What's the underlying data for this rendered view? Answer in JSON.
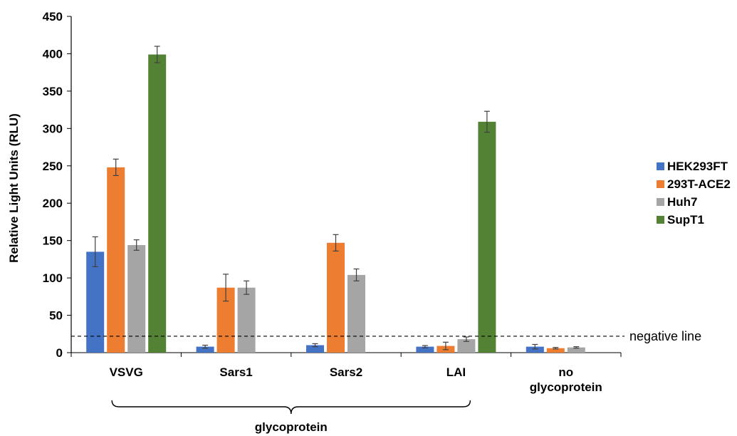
{
  "chart_data": {
    "type": "bar",
    "ylabel": "Relative Light Units (RLU)",
    "ylim": [
      0,
      450
    ],
    "yticks": [
      0,
      50,
      100,
      150,
      200,
      250,
      300,
      350,
      400,
      450
    ],
    "categories": [
      {
        "lines": [
          "VSVG"
        ]
      },
      {
        "lines": [
          "Sars1"
        ]
      },
      {
        "lines": [
          "Sars2"
        ]
      },
      {
        "lines": [
          "LAI"
        ]
      },
      {
        "lines": [
          "no",
          "glycoprotein"
        ]
      }
    ],
    "series": [
      {
        "name": "HEK293FT",
        "color": "#4472C4",
        "values": [
          135,
          8,
          10,
          8,
          8
        ],
        "errors": [
          20,
          2,
          2,
          1.5,
          3
        ]
      },
      {
        "name": "293T-ACE2",
        "color": "#ED7D31",
        "values": [
          248,
          87,
          147,
          9,
          6
        ],
        "errors": [
          11,
          18,
          11,
          5,
          1
        ]
      },
      {
        "name": "Huh7",
        "color": "#A5A5A5",
        "values": [
          144,
          87,
          104,
          18,
          7
        ],
        "errors": [
          7,
          9,
          8,
          3,
          1
        ]
      },
      {
        "name": "SupT1",
        "color": "#548235",
        "values": [
          399,
          0,
          0,
          309,
          0
        ],
        "errors": [
          11,
          0,
          0,
          14,
          0
        ]
      }
    ],
    "reference_line": {
      "value": 22,
      "label": "negative line",
      "style": "dashed"
    },
    "group_bracket": {
      "label": "glycoprotein",
      "spans_categories": [
        "VSVG",
        "Sars1",
        "Sars2",
        "LAI"
      ]
    },
    "legend_position": "right",
    "grid": false
  }
}
